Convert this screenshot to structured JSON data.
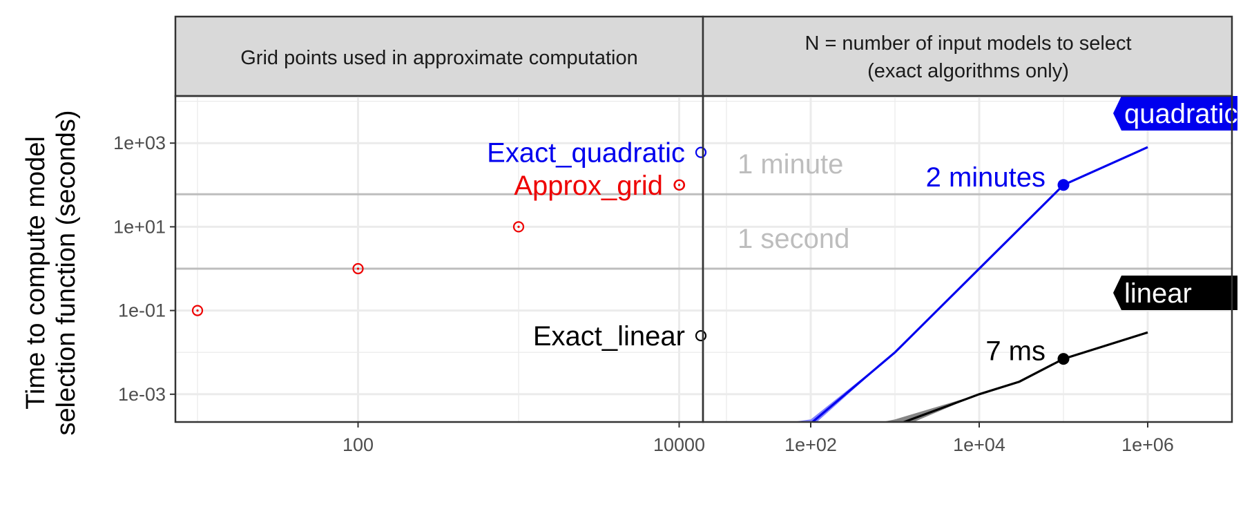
{
  "chart_data": {
    "type": "line",
    "facets": [
      {
        "strip_label": "Grid points used in approximate computation",
        "x_ticks": [
          "100",
          "10000"
        ],
        "points": [
          {
            "x": 10,
            "y": 0.1,
            "series": "Approx_grid"
          },
          {
            "x": 100,
            "y": 1,
            "series": "Approx_grid"
          },
          {
            "x": 1000,
            "y": 10,
            "series": "Approx_grid"
          },
          {
            "x": 10000,
            "y": 100,
            "series": "Approx_grid"
          }
        ],
        "labels": [
          {
            "text": "Exact_quadratic",
            "color": "#0000ee",
            "y": 600
          },
          {
            "text": "Approx_grid",
            "color": "#ee0000",
            "y": 100
          },
          {
            "text": "Exact_linear",
            "color": "#000000",
            "y": 0.025
          }
        ]
      },
      {
        "strip_label_lines": [
          "N = number of input models to select",
          "(exact algorithms only)"
        ],
        "x_ticks": [
          "1e+02",
          "1e+04",
          "1e+06"
        ],
        "series": [
          {
            "name": "quadratic",
            "color": "#0000ee",
            "band_color": "#7a7aff",
            "x": [
              20,
              100,
              1000,
              100000,
              1000000
            ],
            "y": [
              9e-05,
              0.0002,
              0.01,
              100,
              800
            ],
            "lower": [
              4e-05,
              0.00016,
              0.01,
              100,
              800
            ],
            "upper": [
              0.00016,
              0.00025,
              0.01,
              100,
              800
            ],
            "highlight_x": 100000,
            "highlight_y": 100,
            "highlight_label": "2 minutes",
            "end_label": "quadratic"
          },
          {
            "name": "linear",
            "color": "#000000",
            "band_color": "#7f7f7f",
            "x": [
              20,
              100,
              1000,
              10000,
              30000,
              100000,
              1000000
            ],
            "y": [
              9e-05,
              0.0001,
              0.00018,
              0.001,
              0.002,
              0.007,
              0.03
            ],
            "lower": [
              9e-05,
              0.0001,
              0.00014,
              0.001,
              0.002,
              0.007,
              0.03
            ],
            "upper": [
              9e-05,
              0.0001,
              0.00025,
              0.001,
              0.002,
              0.007,
              0.03
            ],
            "highlight_x": 100000,
            "highlight_y": 0.007,
            "highlight_label": "7 ms",
            "end_label": "linear"
          }
        ],
        "reference_lines": [
          {
            "y": 60,
            "label": "1 minute"
          },
          {
            "y": 1,
            "label": "1 second"
          }
        ]
      }
    ],
    "y_scale": "log10",
    "y_ticks": [
      "1e+03",
      "1e+01",
      "1e-01",
      "1e-03"
    ],
    "ylabel_lines": [
      "Time to compute model",
      "selection function (seconds)"
    ],
    "grid": true
  }
}
